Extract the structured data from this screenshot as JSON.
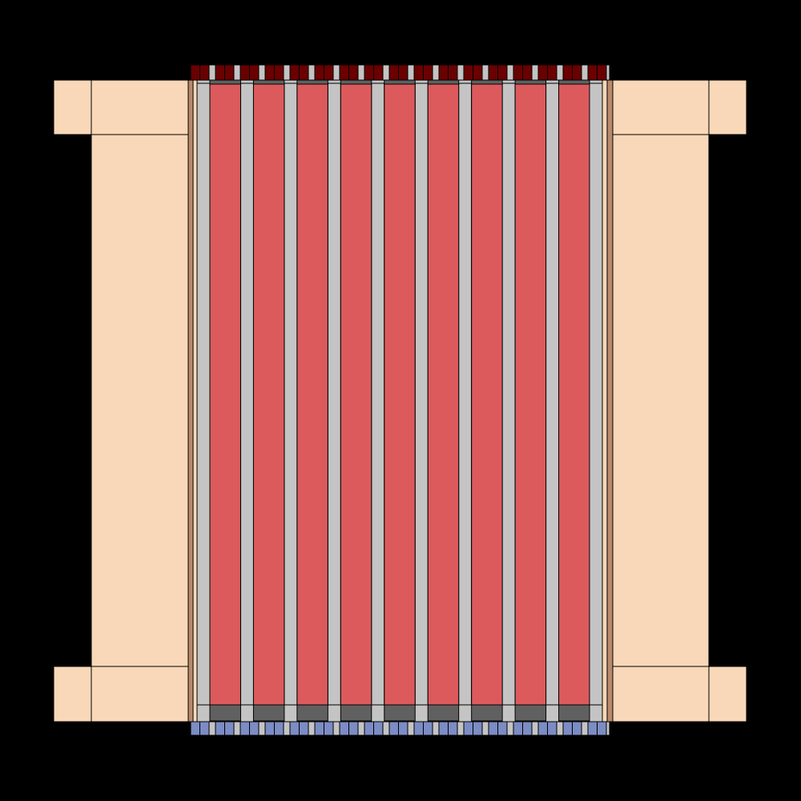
{
  "colors": {
    "background": "#000000",
    "reflector": "#f8d8b8",
    "fuel_pin": "#dc5a5c",
    "guide_tube": "#c4c4c4",
    "plug": "#606060",
    "top_nozzle": "#6a0000",
    "bottom_nozzle": "#7c8cc4",
    "clad_layer": "#b88a6c",
    "outline": "#000000"
  },
  "assembly": {
    "fuel_pin_count": 9,
    "guide_tube_count": 10
  }
}
